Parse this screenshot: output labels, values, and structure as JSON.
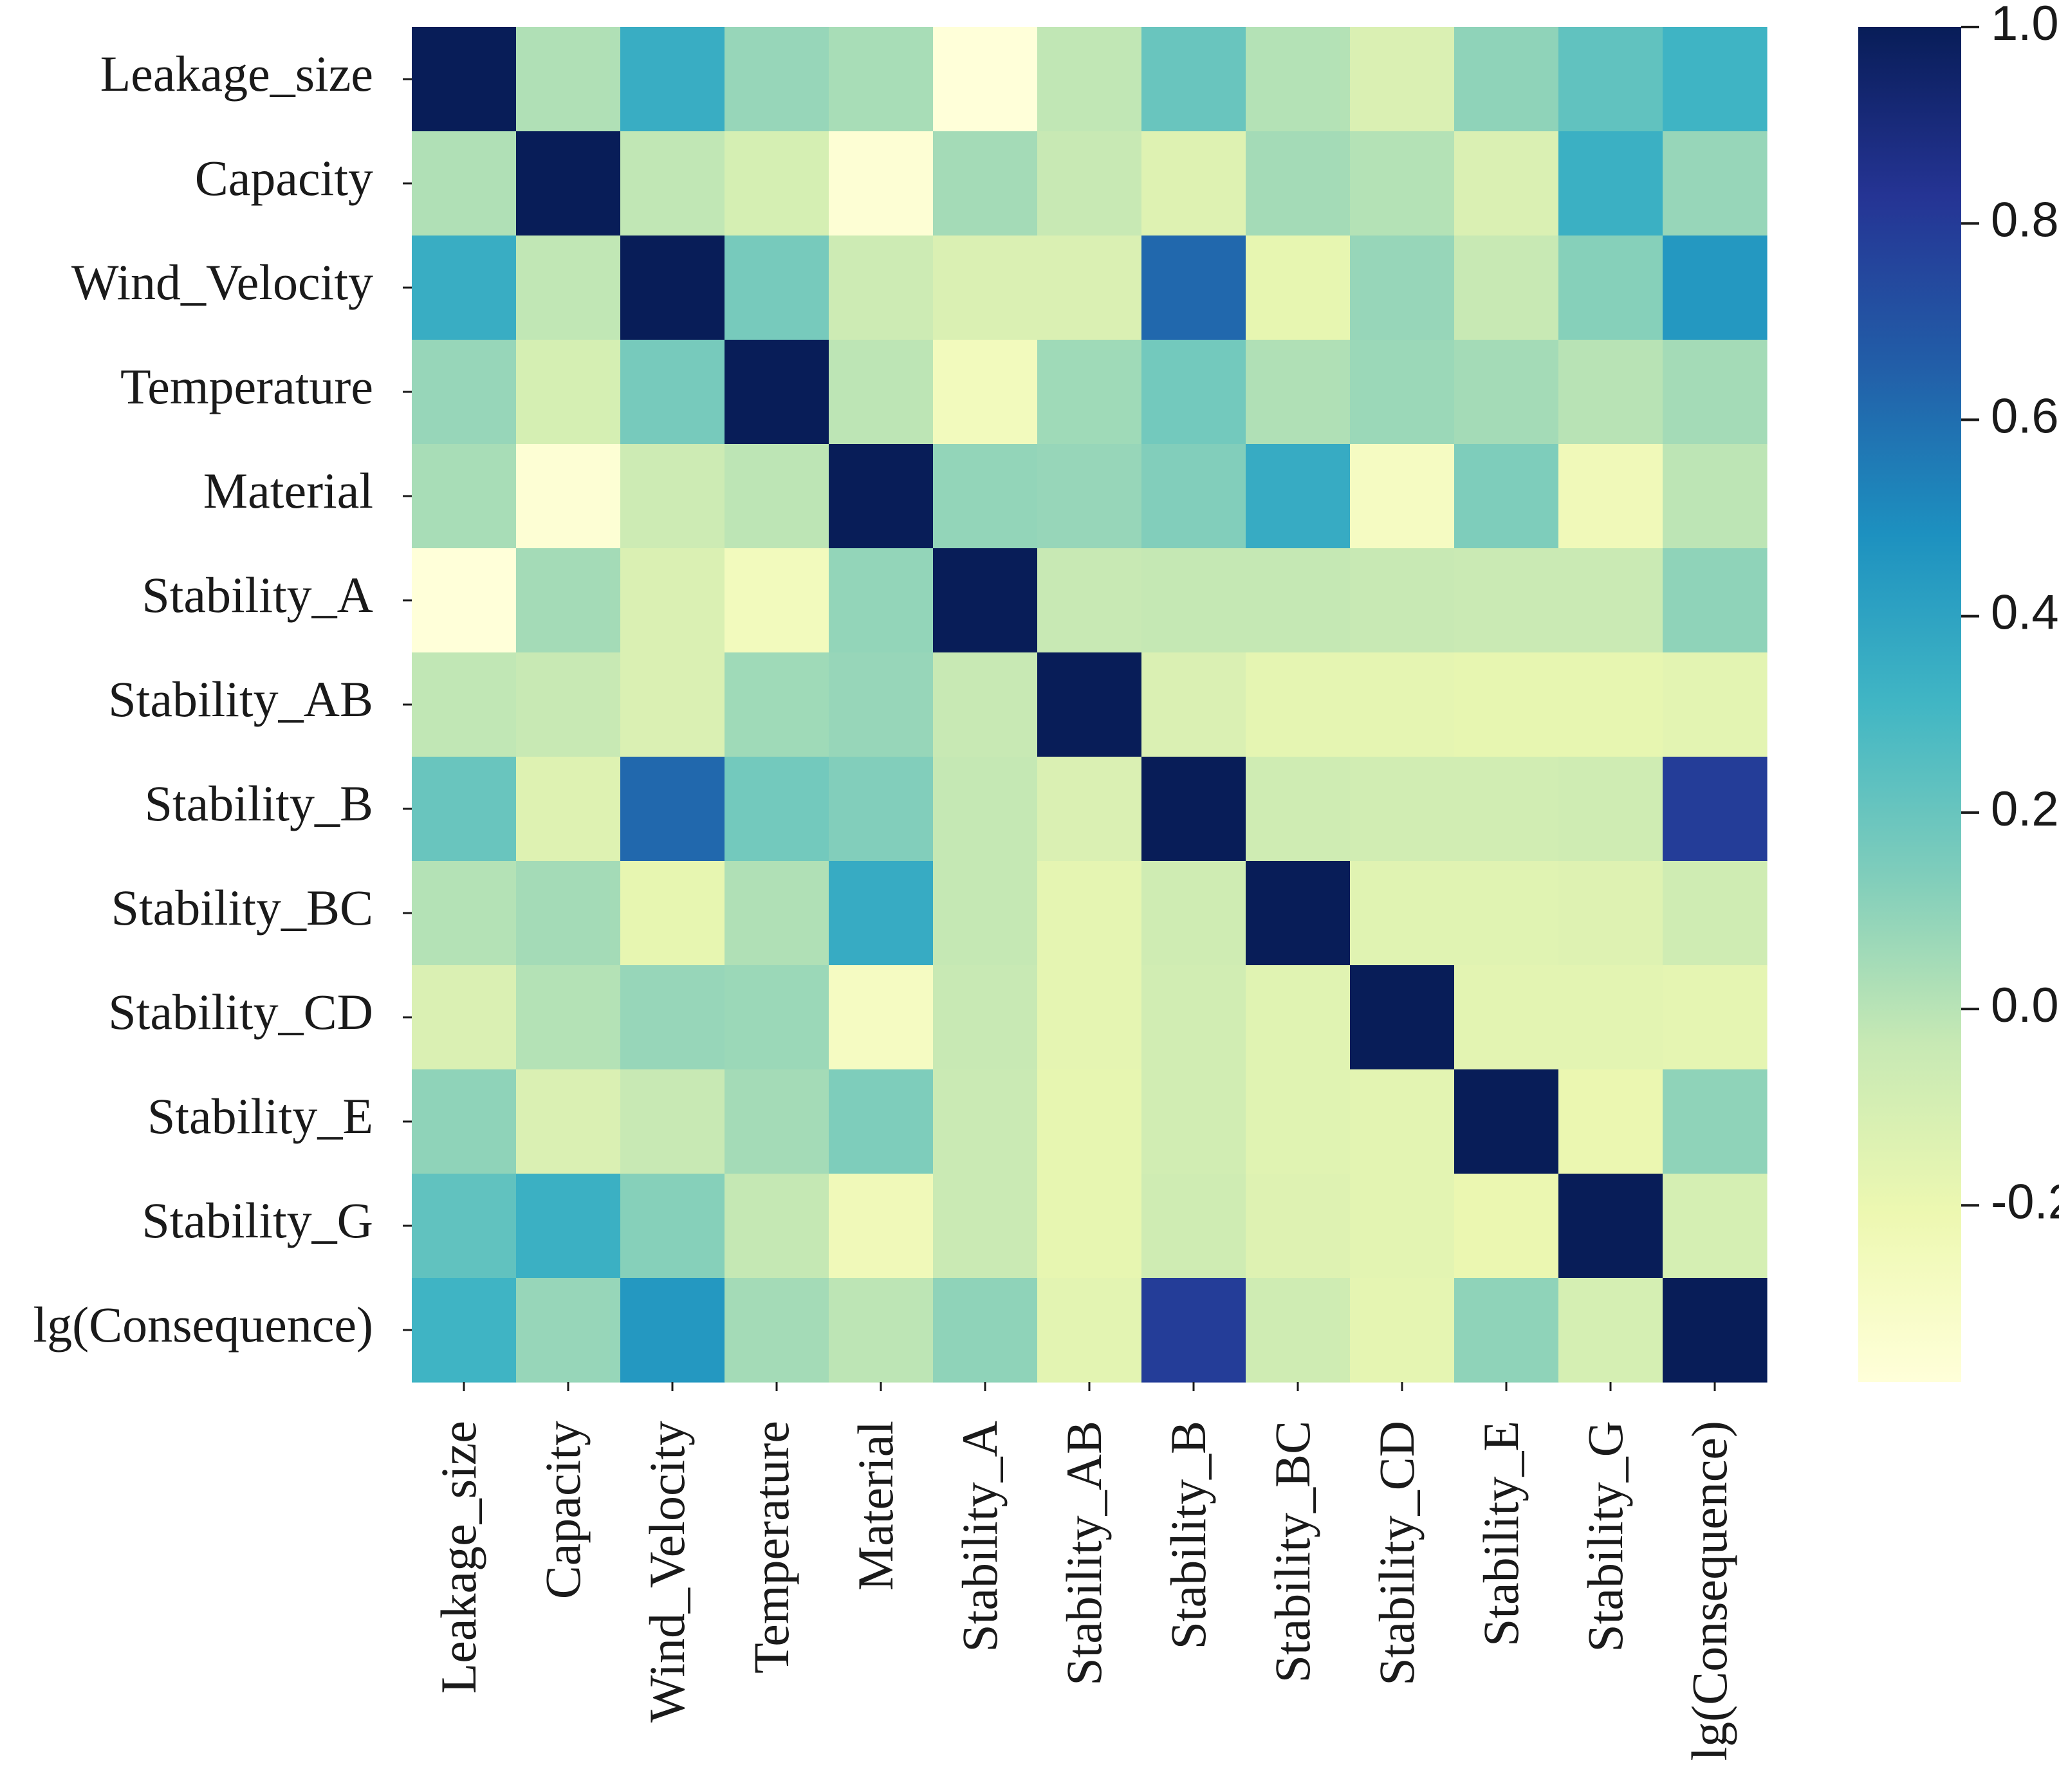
{
  "chart_data": {
    "type": "heatmap",
    "title": "",
    "xlabel": "",
    "ylabel": "",
    "labels": [
      "Leakage_size",
      "Capacity",
      "Wind_Velocity",
      "Temperature",
      "Material",
      "Stability_A",
      "Stability_AB",
      "Stability_B",
      "Stability_BC",
      "Stability_CD",
      "Stability_E",
      "Stability_G",
      "lg(Consequence)"
    ],
    "matrix": [
      [
        1.0,
        0.02,
        0.35,
        0.08,
        0.04,
        -0.38,
        -0.02,
        0.2,
        0.01,
        -0.12,
        0.1,
        0.22,
        0.32
      ],
      [
        0.02,
        1.0,
        -0.02,
        -0.1,
        -0.36,
        0.05,
        -0.04,
        -0.14,
        0.05,
        0.01,
        -0.12,
        0.34,
        0.08
      ],
      [
        0.35,
        -0.02,
        1.0,
        0.16,
        -0.06,
        -0.12,
        -0.12,
        0.62,
        -0.18,
        0.08,
        -0.04,
        0.12,
        0.45
      ],
      [
        0.08,
        -0.1,
        0.16,
        1.0,
        -0.01,
        -0.26,
        0.06,
        0.17,
        0.02,
        0.07,
        0.05,
        0.0,
        0.05
      ],
      [
        0.04,
        -0.36,
        -0.06,
        -0.01,
        1.0,
        0.09,
        0.08,
        0.13,
        0.36,
        -0.28,
        0.14,
        -0.24,
        -0.01
      ],
      [
        -0.38,
        0.05,
        -0.12,
        -0.26,
        0.09,
        1.0,
        -0.04,
        -0.03,
        -0.03,
        -0.04,
        -0.05,
        -0.05,
        0.1
      ],
      [
        -0.02,
        -0.04,
        -0.12,
        0.06,
        0.08,
        -0.04,
        1.0,
        -0.12,
        -0.17,
        -0.17,
        -0.18,
        -0.18,
        -0.16
      ],
      [
        0.2,
        -0.14,
        0.62,
        0.17,
        0.13,
        -0.03,
        -0.12,
        1.0,
        -0.07,
        -0.08,
        -0.08,
        -0.07,
        0.79
      ],
      [
        0.01,
        0.05,
        -0.18,
        0.02,
        0.36,
        -0.03,
        -0.17,
        -0.07,
        1.0,
        -0.15,
        -0.15,
        -0.14,
        -0.07
      ],
      [
        -0.12,
        0.01,
        0.08,
        0.07,
        -0.28,
        -0.04,
        -0.17,
        -0.08,
        -0.15,
        1.0,
        -0.16,
        -0.16,
        -0.17
      ],
      [
        0.1,
        -0.12,
        -0.04,
        0.05,
        0.14,
        -0.05,
        -0.18,
        -0.08,
        -0.15,
        -0.16,
        1.0,
        -0.2,
        0.1
      ],
      [
        0.22,
        0.34,
        0.12,
        -0.03,
        -0.24,
        -0.05,
        -0.18,
        -0.07,
        -0.14,
        -0.16,
        -0.2,
        1.0,
        -0.1
      ],
      [
        0.32,
        0.08,
        0.45,
        0.05,
        -0.01,
        0.1,
        -0.16,
        0.79,
        -0.07,
        -0.17,
        0.1,
        -0.1,
        1.0
      ]
    ],
    "vmin": -0.38,
    "vmax": 1.0,
    "colormap": "YlGnBu",
    "colorbar": {
      "ticks": [
        1.0,
        0.8,
        0.6,
        0.4,
        0.2,
        0.0,
        -0.2
      ],
      "tick_labels": [
        "1.0",
        "0.8",
        "0.6",
        "0.4",
        "0.2",
        "0.0",
        "-0.2"
      ],
      "placement": "right"
    }
  },
  "colors": {
    "colormap_stops": [
      "#ffffd9",
      "#edf8b1",
      "#c7e9b4",
      "#7fcdbb",
      "#41b6c4",
      "#1d91c0",
      "#225ea8",
      "#253494",
      "#081d58"
    ],
    "text": "#1a1a1a",
    "background": "#ffffff"
  }
}
